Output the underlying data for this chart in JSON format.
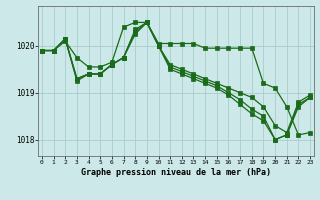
{
  "title": "Graphe pression niveau de la mer (hPa)",
  "bg_color": "#cce8e8",
  "grid_color": "#aacccc",
  "line_color": "#1a6b1a",
  "hours": [
    0,
    1,
    2,
    3,
    4,
    5,
    6,
    7,
    8,
    9,
    10,
    11,
    12,
    13,
    14,
    15,
    16,
    17,
    18,
    19,
    20,
    21,
    22,
    23
  ],
  "line1": [
    1019.9,
    1019.9,
    1020.1,
    1019.75,
    1019.55,
    1019.55,
    1019.65,
    1020.4,
    1020.5,
    1020.5,
    1020.05,
    1020.05,
    1020.05,
    1020.05,
    1019.95,
    1019.95,
    1019.95,
    1019.95,
    1019.95,
    1019.2,
    1019.1,
    1018.7,
    1018.1,
    1018.15
  ],
  "line2": [
    1019.9,
    1019.9,
    1020.15,
    1019.3,
    1019.4,
    1019.4,
    1019.6,
    1019.75,
    1020.35,
    1020.5,
    1020.0,
    1019.6,
    1019.5,
    1019.4,
    1019.3,
    1019.2,
    1019.1,
    1019.0,
    1018.9,
    1018.7,
    1018.3,
    1018.15,
    1018.8,
    1018.95
  ],
  "line3": [
    1019.9,
    1019.9,
    1020.15,
    1019.3,
    1019.4,
    1019.4,
    1019.6,
    1019.75,
    1020.3,
    1020.5,
    1020.0,
    1019.55,
    1019.45,
    1019.35,
    1019.25,
    1019.15,
    1019.0,
    1018.85,
    1018.65,
    1018.5,
    1018.0,
    1018.1,
    1018.75,
    1018.9
  ],
  "line4": [
    1019.9,
    1019.9,
    1020.15,
    1019.25,
    1019.4,
    1019.4,
    1019.6,
    1019.75,
    1020.25,
    1020.5,
    1020.0,
    1019.5,
    1019.4,
    1019.3,
    1019.2,
    1019.1,
    1018.95,
    1018.75,
    1018.55,
    1018.4,
    1018.0,
    1018.1,
    1018.7,
    1018.9
  ],
  "ylim": [
    1017.65,
    1020.85
  ],
  "yticks": [
    1018,
    1019,
    1020
  ],
  "xlim": [
    -0.3,
    23.3
  ],
  "marker_size": 2.5,
  "line_width": 0.9
}
